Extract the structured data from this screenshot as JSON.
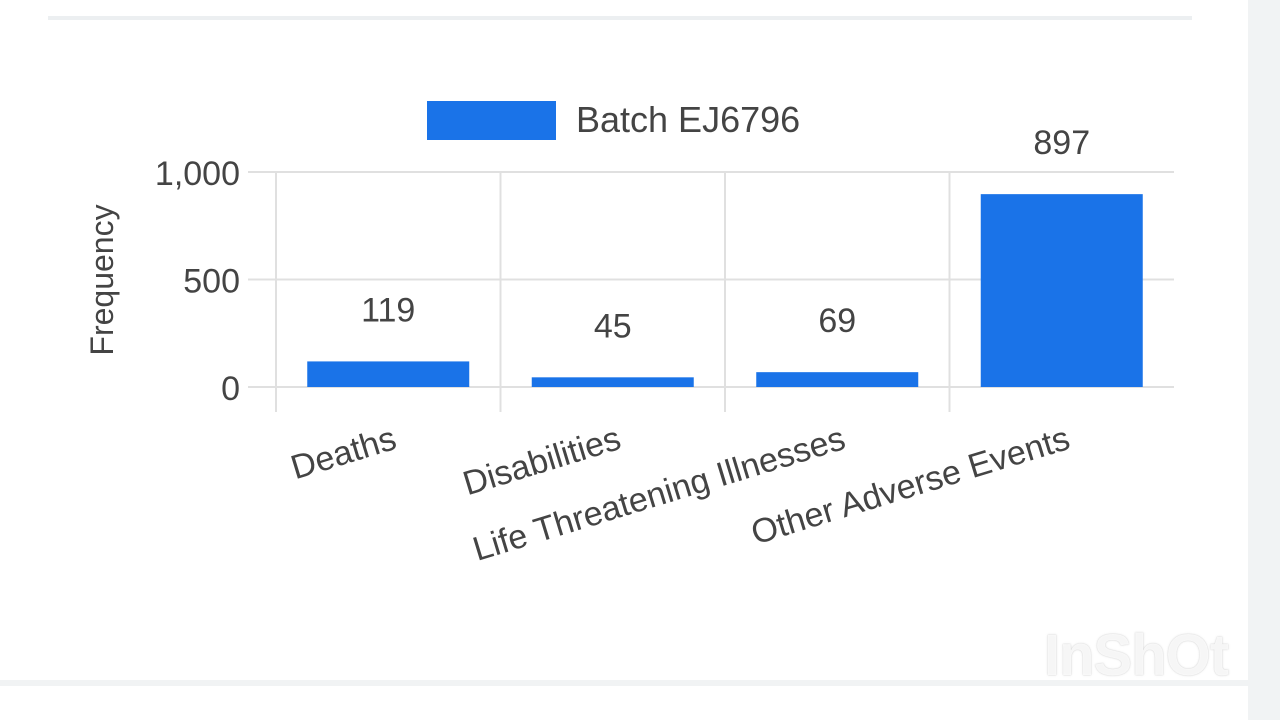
{
  "chart_data": {
    "type": "bar",
    "categories": [
      "Deaths",
      "Disabilities",
      "Life Threatening Illnesses",
      "Other Adverse Events"
    ],
    "series": [
      {
        "name": "Batch EJ6796",
        "values": [
          119,
          45,
          69,
          897
        ]
      }
    ],
    "data_labels": [
      "119",
      "45",
      "69",
      "897"
    ],
    "y_ticks": [
      "0",
      "500",
      "1,000"
    ],
    "y_tick_values": [
      0,
      500,
      1000
    ],
    "ylabel": "Frequency",
    "xlabel": "",
    "ylim": [
      0,
      1000
    ],
    "legend_position": "top",
    "grid": true,
    "bar_color": "#1a73e8"
  },
  "watermark": "InShOt"
}
